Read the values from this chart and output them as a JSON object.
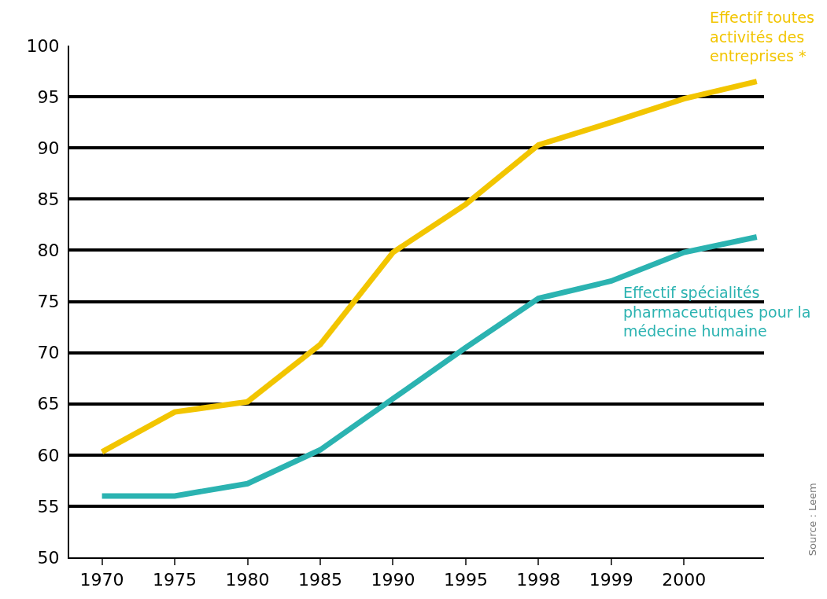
{
  "chart_data": {
    "type": "line",
    "categories": [
      "1970",
      "1975",
      "1980",
      "1985",
      "1990",
      "1995",
      "1998",
      "1999",
      "2000",
      null
    ],
    "series": [
      {
        "name": "Effectif toutes activités des entreprises *",
        "color": "#f2c500",
        "values": [
          60.3,
          64.2,
          65.2,
          70.8,
          79.8,
          84.5,
          90.3,
          92.5,
          94.8,
          96.5
        ]
      },
      {
        "name": "Effectif spécialités pharmaceutiques pour la médecine humaine",
        "color": "#2bb3b1",
        "values": [
          56,
          56,
          57.2,
          60.5,
          65.5,
          70.5,
          75.3,
          77,
          79.8,
          81.3
        ]
      }
    ],
    "ylim": [
      50,
      100
    ],
    "yticks": [
      50,
      55,
      60,
      65,
      70,
      75,
      80,
      85,
      90,
      95,
      100
    ],
    "grid": "y",
    "legend": false,
    "marker": "none",
    "line_style": "solid",
    "annotations": [
      "Source : Leem"
    ]
  }
}
